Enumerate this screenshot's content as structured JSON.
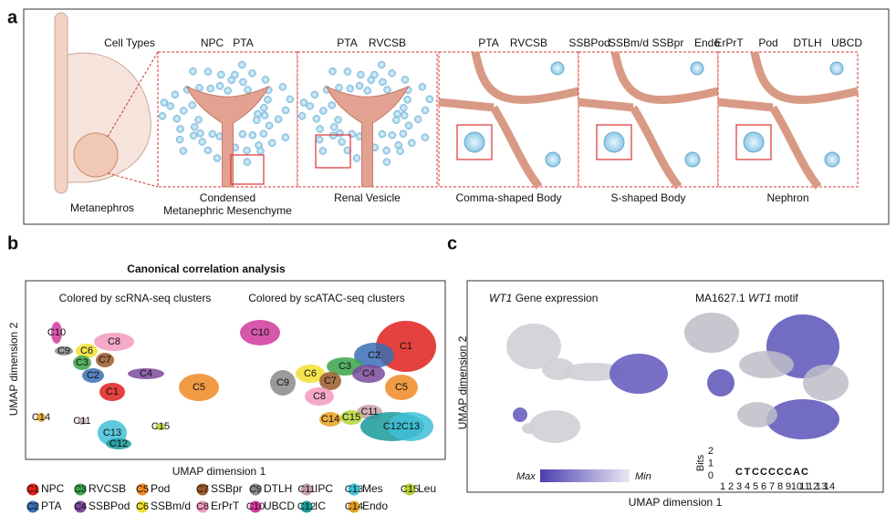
{
  "panel_a": {
    "label": "a",
    "cell_types_title": "Cell Types",
    "organ": "Metanephros",
    "stages": [
      {
        "cell_types": [
          "NPC",
          "PTA"
        ],
        "name_lines": [
          "Condensed",
          "Metanephric Mesenchyme"
        ]
      },
      {
        "cell_types": [
          "PTA",
          "RVCSB"
        ],
        "name_lines": [
          "Renal Vesicle"
        ]
      },
      {
        "cell_types": [
          "PTA",
          "RVCSB"
        ],
        "name_lines": [
          "Comma-shaped Body"
        ]
      },
      {
        "cell_types": [
          "SSBPod",
          "SSBm/d",
          "SSBpr",
          "Endo"
        ],
        "name_lines": [
          "S-shaped Body"
        ]
      },
      {
        "cell_types": [
          "ErPrT",
          "Pod",
          "DTLH",
          "UBCD"
        ],
        "name_lines": [
          "Nephron"
        ]
      }
    ]
  },
  "panel_b": {
    "label": "b",
    "title": "Canonical correlation analysis",
    "left_subtitle": "Colored by scRNA-seq clusters",
    "right_subtitle": "Colored by scATAC-seq clusters",
    "x_label": "UMAP dimension 1",
    "y_label": "UMAP dimension 2",
    "left_cluster_labels": [
      "C10",
      "C9",
      "C6",
      "C8",
      "C3",
      "C7",
      "C2",
      "C4",
      "C5",
      "C1",
      "C14",
      "C11",
      "C13",
      "C12",
      "C15"
    ],
    "right_cluster_labels": [
      "C10",
      "C1",
      "C2",
      "C3",
      "C4",
      "C9",
      "C6",
      "C7",
      "C8",
      "C5",
      "C11",
      "C15",
      "C14",
      "C12",
      "C13"
    ],
    "legend": [
      {
        "id": "C1",
        "name": "NPC",
        "color": "#e0201c"
      },
      {
        "id": "C2",
        "name": "PTA",
        "color": "#3a6fb5"
      },
      {
        "id": "C3",
        "name": "RVCSB",
        "color": "#3aa34a"
      },
      {
        "id": "C4",
        "name": "SSBPod",
        "color": "#7b4a9c"
      },
      {
        "id": "C5",
        "name": "Pod",
        "color": "#f08a24"
      },
      {
        "id": "C6",
        "name": "SSBm/d",
        "color": "#f2e030"
      },
      {
        "id": "C7",
        "name": "SSBpr",
        "color": "#9a5a2a"
      },
      {
        "id": "C8",
        "name": "ErPrT",
        "color": "#f29ac0"
      },
      {
        "id": "C9",
        "name": "DTLH",
        "color": "#8a8a8a"
      },
      {
        "id": "C10",
        "name": "UBCD",
        "color": "#d0399b"
      },
      {
        "id": "C11",
        "name": "IPC",
        "color": "#c8a0a8"
      },
      {
        "id": "C12",
        "name": "IC",
        "color": "#1a9a9a"
      },
      {
        "id": "C13",
        "name": "Mes",
        "color": "#3fc0d8"
      },
      {
        "id": "C14",
        "name": "Endo",
        "color": "#e6a020"
      },
      {
        "id": "C15",
        "name": "Leu",
        "color": "#b5d335"
      }
    ]
  },
  "panel_c": {
    "label": "c",
    "left_title": {
      "gene": "WT1",
      "text": "Gene expression"
    },
    "right_title": {
      "prefix": "MA1627.1",
      "gene": "WT1",
      "suffix": "motif"
    },
    "x_label": "UMAP dimension 1",
    "y_label": "UMAP dimension 2",
    "colorbar_max": "Max",
    "colorbar_min": "Min",
    "logo": {
      "y_label": "Bits",
      "yticks": [
        0,
        1,
        2
      ],
      "positions": [
        1,
        2,
        3,
        4,
        5,
        6,
        7,
        8,
        9,
        10,
        11,
        12,
        13,
        14
      ],
      "letters": [
        "C",
        "T",
        "C",
        "C",
        "C",
        "C",
        "C",
        "A",
        "C"
      ]
    }
  }
}
